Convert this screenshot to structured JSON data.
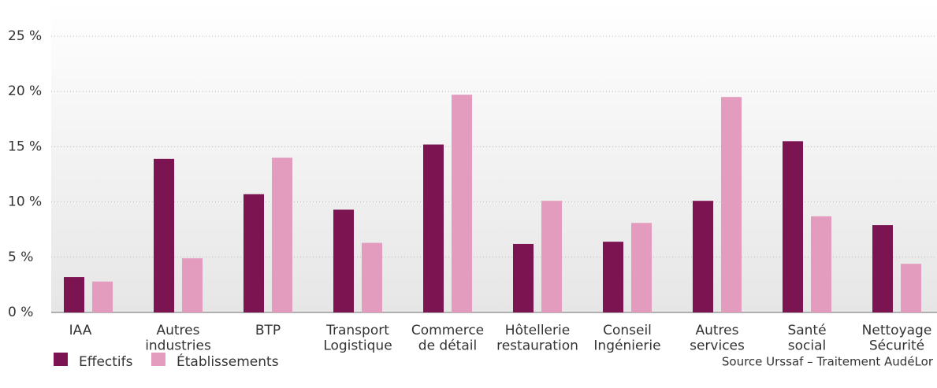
{
  "chart_data": {
    "type": "bar",
    "categories": [
      "IAA",
      "Autres\nindustries",
      "BTP",
      "Transport\nLogistique",
      "Commerce\nde détail",
      "Hôtellerie\nrestauration",
      "Conseil\nIngénierie",
      "Autres\nservices",
      "Santé\nsocial",
      "Nettoyage\nSécurité"
    ],
    "series": [
      {
        "name": "Effectifs",
        "color": "#7b1450",
        "values": [
          3.2,
          13.9,
          10.7,
          9.3,
          15.2,
          6.2,
          6.4,
          10.1,
          15.5,
          7.9
        ]
      },
      {
        "name": "Établissements",
        "color": "#e39cbd",
        "values": [
          2.8,
          4.9,
          14.0,
          6.3,
          19.7,
          10.1,
          8.1,
          19.5,
          8.7,
          4.4
        ]
      }
    ],
    "ylim": [
      0,
      25
    ],
    "yticks": [
      {
        "value": 0,
        "label": "0 %"
      },
      {
        "value": 5,
        "label": "5 %"
      },
      {
        "value": 10,
        "label": "10 %"
      },
      {
        "value": 15,
        "label": "15 %"
      },
      {
        "value": 20,
        "label": "20 %"
      },
      {
        "value": 25,
        "label": "25 %"
      }
    ],
    "grid": true,
    "legend": "bottom-left",
    "source": "Source Urssaf – Traitement AudéLor"
  }
}
